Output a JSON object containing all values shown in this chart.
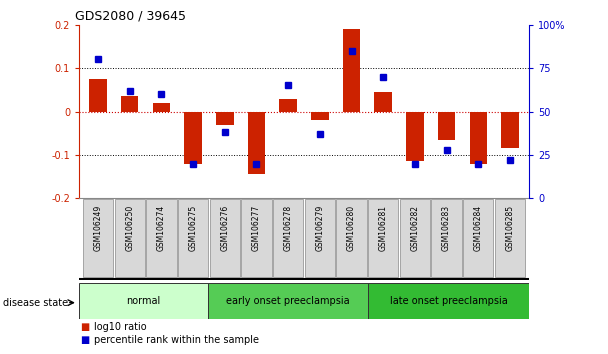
{
  "title": "GDS2080 / 39645",
  "samples": [
    "GSM106249",
    "GSM106250",
    "GSM106274",
    "GSM106275",
    "GSM106276",
    "GSM106277",
    "GSM106278",
    "GSM106279",
    "GSM106280",
    "GSM106281",
    "GSM106282",
    "GSM106283",
    "GSM106284",
    "GSM106285"
  ],
  "log10_ratio": [
    0.075,
    0.035,
    0.02,
    -0.12,
    -0.03,
    -0.145,
    0.03,
    -0.02,
    0.19,
    0.045,
    -0.115,
    -0.065,
    -0.12,
    -0.085
  ],
  "percentile_rank": [
    80,
    62,
    60,
    20,
    38,
    20,
    65,
    37,
    85,
    70,
    20,
    28,
    20,
    22
  ],
  "groups": [
    {
      "label": "normal",
      "start": 0,
      "end": 4,
      "color": "#ccffcc"
    },
    {
      "label": "early onset preeclampsia",
      "start": 4,
      "end": 9,
      "color": "#55cc55"
    },
    {
      "label": "late onset preeclampsia",
      "start": 9,
      "end": 14,
      "color": "#33bb33"
    }
  ],
  "ylim": [
    -0.2,
    0.2
  ],
  "y2lim": [
    0,
    100
  ],
  "yticks": [
    -0.2,
    -0.1,
    0.0,
    0.1,
    0.2
  ],
  "y2ticks": [
    0,
    25,
    50,
    75,
    100
  ],
  "hlines": [
    0.1,
    -0.1
  ],
  "bar_color": "#cc2200",
  "dot_color": "#0000cc",
  "zero_line_color": "#cc0000",
  "grid_color": "#000000",
  "bg_color": "#ffffff",
  "bar_width": 0.55,
  "disease_state_label": "disease state",
  "legend_items": [
    {
      "label": "log10 ratio",
      "color": "#cc2200"
    },
    {
      "label": "percentile rank within the sample",
      "color": "#0000cc"
    }
  ],
  "title_color": "#000000",
  "left_axis_color": "#cc2200",
  "right_axis_color": "#0000cc"
}
